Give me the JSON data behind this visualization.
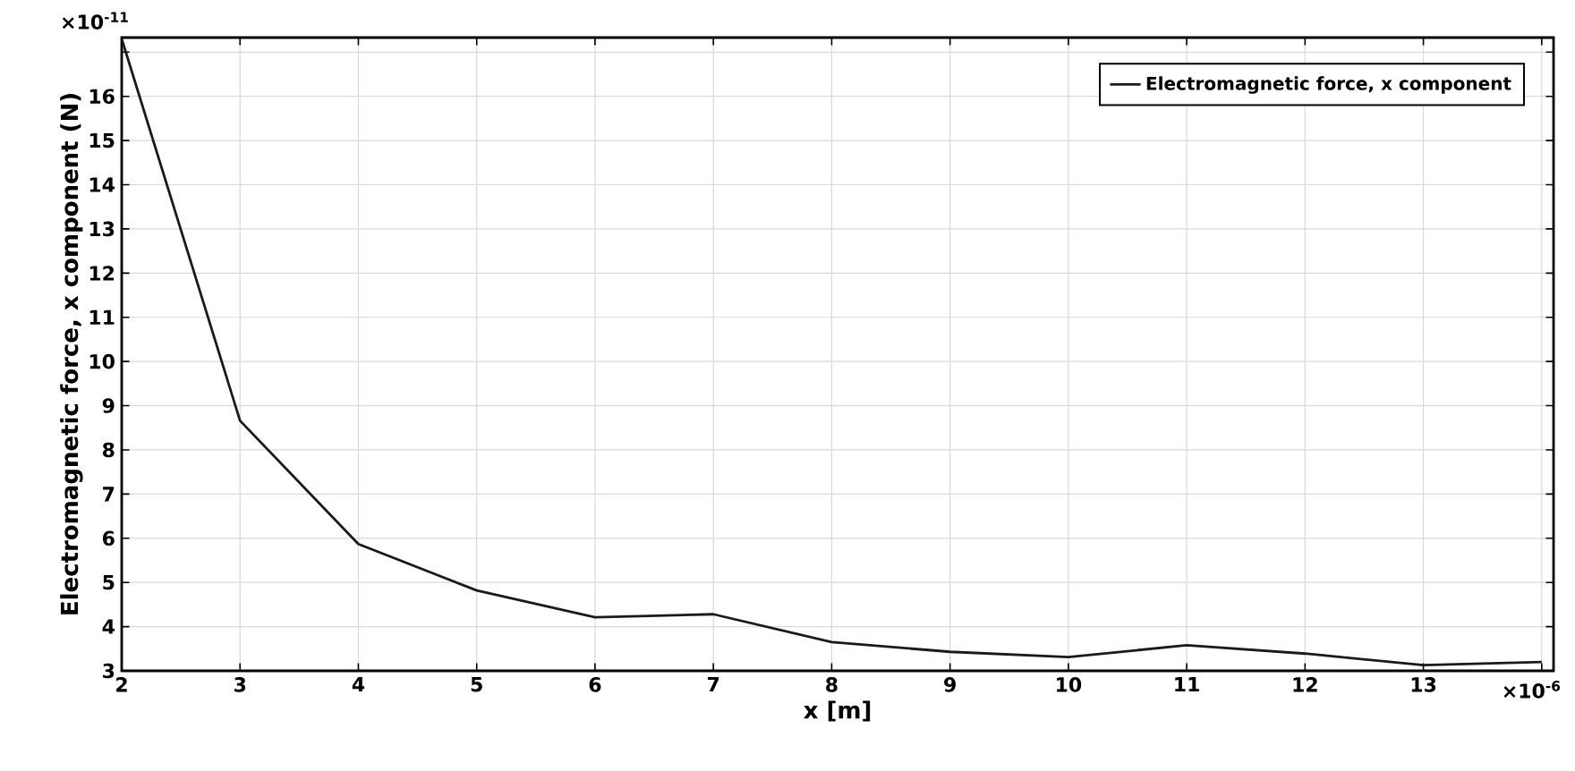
{
  "chart_data": {
    "type": "line",
    "xlabel": "x [m]",
    "ylabel": "Electromagnetic force, x component (N)",
    "x": [
      2,
      3,
      4,
      5,
      6,
      7,
      8,
      9,
      10,
      11,
      12,
      13,
      14
    ],
    "series": [
      {
        "name": "Electromagnetic force, x component",
        "color": "#1a1a1a",
        "values": [
          17.3,
          8.66,
          5.87,
          4.82,
          4.21,
          4.28,
          3.65,
          3.43,
          3.31,
          3.58,
          3.39,
          3.13,
          3.2
        ]
      }
    ],
    "xlim": [
      2,
      14.1
    ],
    "ylim": [
      3,
      17.33
    ],
    "xticks": [
      2,
      3,
      4,
      5,
      6,
      7,
      8,
      9,
      10,
      11,
      12,
      13,
      {
        "value": 14,
        "label": null
      }
    ],
    "yticks": [
      3,
      4,
      5,
      6,
      7,
      8,
      9,
      10,
      11,
      12,
      13,
      14,
      15,
      16,
      {
        "value": 17,
        "label": null
      }
    ],
    "annotations": [
      "×10$^{-11}$",
      "×10$^{-6}$"
    ],
    "grid": true,
    "legend": "top right",
    "marker": "none",
    "line_style": "solid"
  }
}
